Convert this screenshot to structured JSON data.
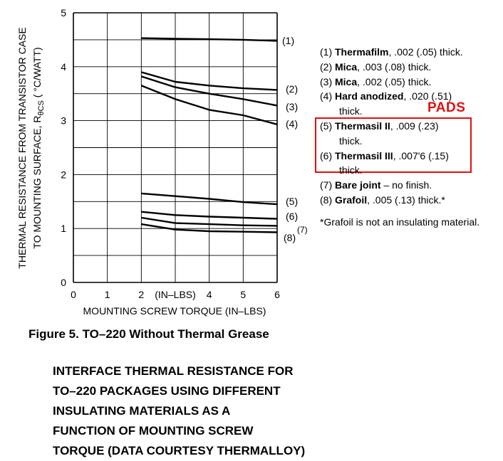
{
  "chart_data": {
    "type": "line",
    "x_axis": {
      "label": "MOUNTING SCREW TORQUE (IN–LBS)",
      "range": [
        0,
        6
      ],
      "ticks": [
        "0",
        "1",
        "2",
        "4",
        "5",
        "6"
      ],
      "tick_values": [
        0,
        1,
        2,
        4,
        5,
        6
      ],
      "inline_label": "(IN–LBS)",
      "inline_at": 3
    },
    "y_axis": {
      "label_line1": "THERMAL RESISTANCE FROM TRANSISTOR CASE",
      "label_line2_prefix": "TO MOUNTING SURFACE, R",
      "label_line2_sub": "θCS",
      "label_line2_suffix": " ( °C/WATT)",
      "range": [
        0,
        5
      ],
      "ticks": [
        "0",
        "1",
        "2",
        "3",
        "4",
        "5"
      ],
      "tick_values": [
        0,
        1,
        2,
        3,
        4,
        5
      ]
    },
    "grid": true,
    "series": [
      {
        "name": "(1)",
        "x": [
          2,
          3,
          4,
          5,
          6
        ],
        "y": [
          4.53,
          4.52,
          4.51,
          4.5,
          4.48
        ]
      },
      {
        "name": "(2)",
        "x": [
          2,
          3,
          4,
          5,
          6
        ],
        "y": [
          3.9,
          3.72,
          3.65,
          3.6,
          3.57
        ]
      },
      {
        "name": "(3)",
        "x": [
          2,
          3,
          4,
          5,
          6
        ],
        "y": [
          3.82,
          3.62,
          3.5,
          3.4,
          3.28
        ]
      },
      {
        "name": "(4)",
        "x": [
          2,
          3,
          4,
          5,
          6
        ],
        "y": [
          3.65,
          3.4,
          3.2,
          3.1,
          2.93
        ]
      },
      {
        "name": "(5)",
        "x": [
          2,
          3,
          4,
          5,
          6
        ],
        "y": [
          1.65,
          1.6,
          1.55,
          1.49,
          1.45
        ]
      },
      {
        "name": "(6)",
        "x": [
          2,
          3,
          4,
          5,
          6
        ],
        "y": [
          1.31,
          1.25,
          1.22,
          1.2,
          1.18
        ]
      },
      {
        "name": "(7)",
        "x": [
          2,
          3,
          4,
          5,
          6
        ],
        "y": [
          1.2,
          1.1,
          1.08,
          1.06,
          1.05
        ]
      },
      {
        "name": "(8)",
        "x": [
          2,
          3,
          4,
          5,
          6
        ],
        "y": [
          1.08,
          0.98,
          0.95,
          0.94,
          0.93
        ]
      }
    ],
    "legend_placement": "right"
  },
  "legend": {
    "items": [
      {
        "num": "(1) ",
        "bold": "Thermafilm",
        "rest": ", .002 (.05) thick.",
        "cont": ""
      },
      {
        "num": "(2) ",
        "bold": "Mica",
        "rest": ", .003 (.08) thick.",
        "cont": ""
      },
      {
        "num": "(3) ",
        "bold": "Mica",
        "rest": ", .002 (.05) thick.",
        "cont": ""
      },
      {
        "num": "(4) ",
        "bold": "Hard anodized",
        "rest": ", .020 (.51)",
        "cont": "thick."
      },
      {
        "num": "(5) ",
        "bold": "Thermasil II",
        "rest": ", .009 (.23)",
        "cont": "thick."
      },
      {
        "num": "(6) ",
        "bold": "Thermasil III",
        "rest": ", .007'6 (.15)",
        "cont": "thick."
      },
      {
        "num": "(7) ",
        "bold": "Bare joint",
        "rest": " – no finish.",
        "cont": ""
      },
      {
        "num": "(8) ",
        "bold": "Grafoil",
        "rest": ", .005 (.13) thick.*",
        "cont": ""
      }
    ],
    "note": "*Grafoil is not an insulating material.",
    "pads_label": "PADS",
    "pads_color": "#e01010"
  },
  "caption": "Figure 5. TO–220 Without Thermal Grease",
  "description": [
    "INTERFACE THERMAL RESISTANCE FOR",
    "TO–220 PACKAGES USING DIFFERENT",
    "INSULATING MATERIALS AS A",
    "FUNCTION OF MOUNTING SCREW",
    "TORQUE (DATA COURTESY THERMALLOY)"
  ]
}
